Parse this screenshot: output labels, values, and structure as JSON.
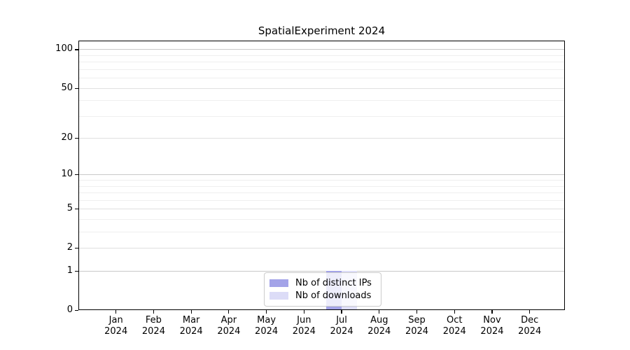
{
  "chart_data": {
    "type": "bar",
    "title": "SpatialExperiment 2024",
    "categories": [
      "Jan 2024",
      "Feb 2024",
      "Mar 2024",
      "Apr 2024",
      "May 2024",
      "Jun 2024",
      "Jul 2024",
      "Aug 2024",
      "Sep 2024",
      "Oct 2024",
      "Nov 2024",
      "Dec 2024"
    ],
    "series": [
      {
        "name": "Nb of distinct IPs",
        "color": "#a3a3e8",
        "values": [
          0,
          0,
          0,
          0,
          0,
          0,
          1,
          0,
          0,
          0,
          0,
          0
        ]
      },
      {
        "name": "Nb of downloads",
        "color": "#dcdcf7",
        "values": [
          0,
          0,
          0,
          0,
          0,
          0,
          1,
          0,
          0,
          0,
          0,
          0
        ]
      }
    ],
    "xlabel": "",
    "ylabel": "",
    "y_scale": "log1p",
    "ylim": [
      0,
      117
    ],
    "y_tick_labels": [
      "100",
      "50",
      "20",
      "10",
      "5",
      "2",
      "1",
      "0"
    ],
    "y_ticks": [
      0,
      1,
      2,
      5,
      10,
      20,
      50,
      100
    ],
    "y_minor_gridlines": [
      3,
      4,
      6,
      7,
      8,
      9,
      30,
      40,
      60,
      70,
      80,
      90
    ],
    "grid": "horizontal",
    "legend_position": "lower center"
  },
  "colors": {
    "bar_distinct_ips": "#a3a3e8",
    "bar_downloads": "#dcdcf7",
    "grid_decade": "#c8c8c8",
    "grid_labeled": "#e0e0e0",
    "grid_minor": "#efefef",
    "axis": "#000000",
    "legend_border": "#cccccc",
    "background": "#ffffff"
  }
}
